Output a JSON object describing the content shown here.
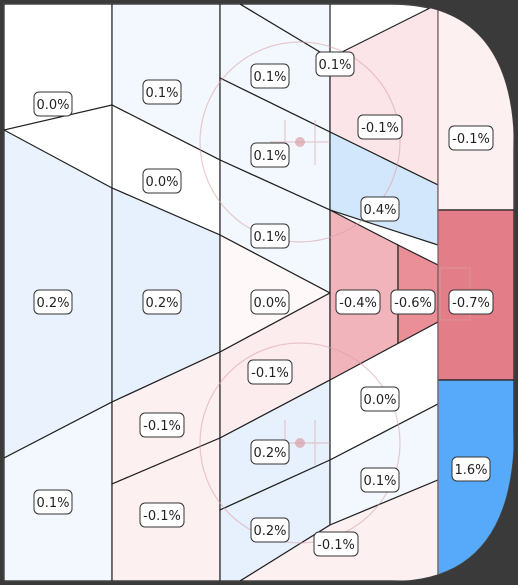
{
  "chart_data": {
    "type": "heatmap",
    "title": "",
    "description_units": "percent",
    "zones": [
      {
        "id": "z1",
        "label": "0.0%",
        "value": 0.0,
        "color": "#ffffff"
      },
      {
        "id": "z2",
        "label": "0.2%",
        "value": 0.2,
        "color": "#eaf3fd"
      },
      {
        "id": "z3",
        "label": "0.1%",
        "value": 0.1,
        "color": "#f3f8fe"
      },
      {
        "id": "z4",
        "label": "0.1%",
        "value": 0.1,
        "color": "#f3f8fe"
      },
      {
        "id": "z5",
        "label": "0.0%",
        "value": 0.0,
        "color": "#ffffff"
      },
      {
        "id": "z6",
        "label": "0.2%",
        "value": 0.2,
        "color": "#e7f1fd"
      },
      {
        "id": "z7",
        "label": "-0.1%",
        "value": -0.1,
        "color": "#fdf0f1"
      },
      {
        "id": "z8",
        "label": "-0.1%",
        "value": -0.1,
        "color": "#fdf0f1"
      },
      {
        "id": "z9",
        "label": "0.1%",
        "value": 0.1,
        "color": "#f3f8fe"
      },
      {
        "id": "z10",
        "label": "0.1%",
        "value": 0.1,
        "color": "#f3f8fe"
      },
      {
        "id": "z11",
        "label": "0.1%",
        "value": 0.1,
        "color": "#f3f8fe"
      },
      {
        "id": "z12",
        "label": "0.0%",
        "value": 0.0,
        "color": "#fef8f8"
      },
      {
        "id": "z13",
        "label": "-0.1%",
        "value": -0.1,
        "color": "#fdecee"
      },
      {
        "id": "z14",
        "label": "0.2%",
        "value": 0.2,
        "color": "#e7f1fd"
      },
      {
        "id": "z15",
        "label": "0.2%",
        "value": 0.2,
        "color": "#e7f1fd"
      },
      {
        "id": "z16",
        "label": "0.1%",
        "value": 0.1,
        "color": "#f3f8fe"
      },
      {
        "id": "z17",
        "label": "-0.1%",
        "value": -0.1,
        "color": "#fbe5e8"
      },
      {
        "id": "z18",
        "label": "0.4%",
        "value": 0.4,
        "color": "#d3e7fc"
      },
      {
        "id": "z19",
        "label": "-0.4%",
        "value": -0.4,
        "color": "#f1b4bb"
      },
      {
        "id": "z20",
        "label": "-0.6%",
        "value": -0.6,
        "color": "#ea8f98"
      },
      {
        "id": "z21",
        "label": "0.0%",
        "value": 0.0,
        "color": "#ffffff"
      },
      {
        "id": "z22",
        "label": "0.1%",
        "value": 0.1,
        "color": "#f3f8fe"
      },
      {
        "id": "z23",
        "label": "-0.1%",
        "value": -0.1,
        "color": "#fdf0f1"
      },
      {
        "id": "z24",
        "label": "-0.1%",
        "value": -0.1,
        "color": "#fdf0f1"
      },
      {
        "id": "z25",
        "label": "-0.7%",
        "value": -0.7,
        "color": "#e37d88"
      },
      {
        "id": "z26",
        "label": "1.6%",
        "value": 1.6,
        "color": "#57aaf9"
      }
    ]
  }
}
